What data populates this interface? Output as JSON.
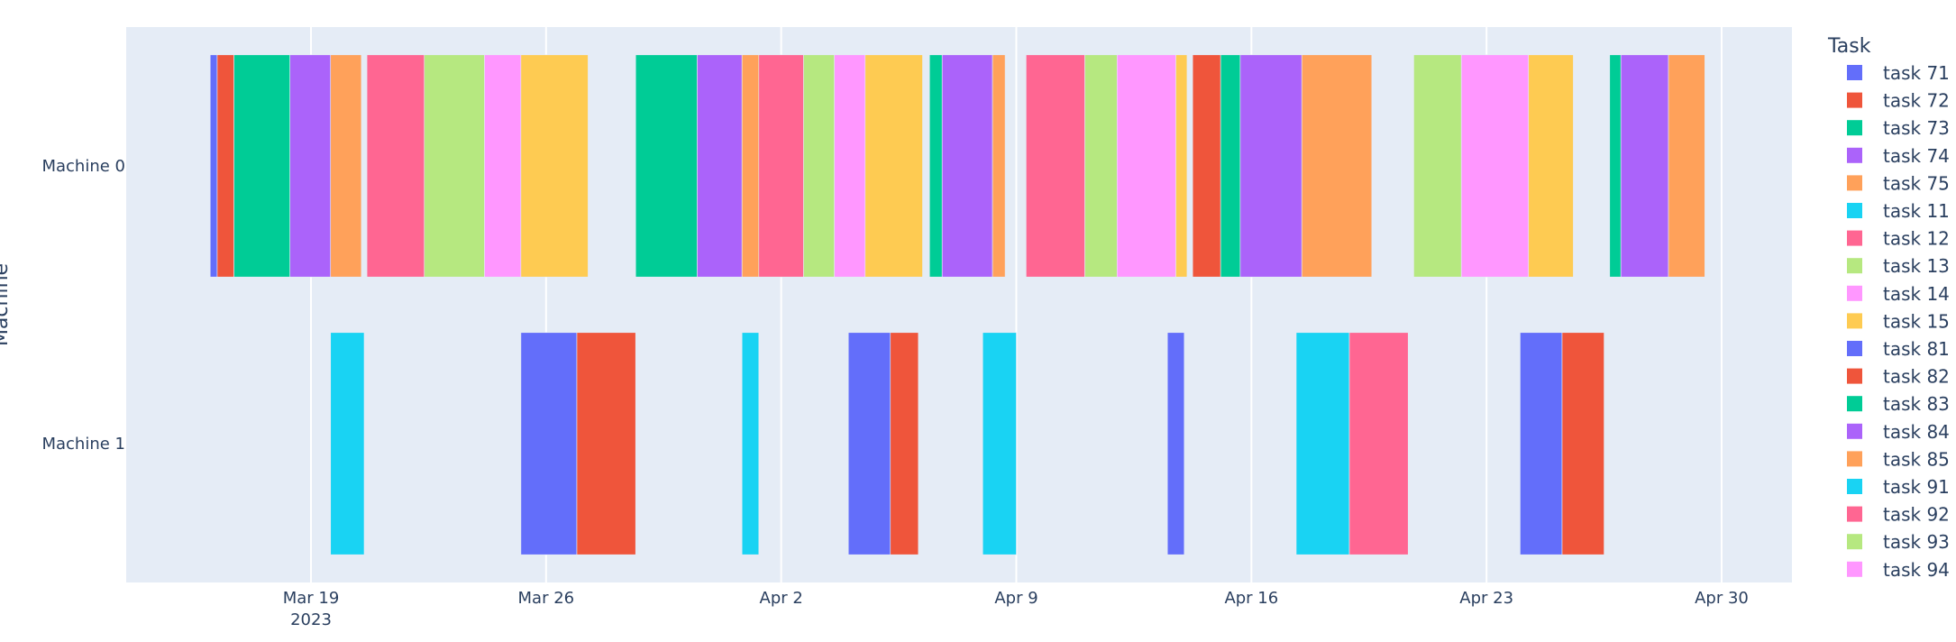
{
  "chart_data": {
    "type": "timeline",
    "y_axis": {
      "title": "Machine",
      "categories": [
        "Machine 0",
        "Machine 1"
      ]
    },
    "x_axis": {
      "type": "date",
      "range": [
        "2023-03-12",
        "2023-05-01"
      ],
      "ticks": [
        {
          "date": "2023-03-19",
          "label": "Mar 19",
          "sublabel": "2023"
        },
        {
          "date": "2023-03-26",
          "label": "Mar 26",
          "sublabel": ""
        },
        {
          "date": "2023-04-02",
          "label": "Apr 2",
          "sublabel": ""
        },
        {
          "date": "2023-04-09",
          "label": "Apr 9",
          "sublabel": ""
        },
        {
          "date": "2023-04-16",
          "label": "Apr 16",
          "sublabel": ""
        },
        {
          "date": "2023-04-23",
          "label": "Apr 23",
          "sublabel": ""
        },
        {
          "date": "2023-04-30",
          "label": "Apr 30",
          "sublabel": ""
        }
      ]
    },
    "legend": {
      "title": "Task",
      "position": "right",
      "items": [
        {
          "name": "task 71",
          "color": "#636efa"
        },
        {
          "name": "task 72",
          "color": "#ef553b"
        },
        {
          "name": "task 73",
          "color": "#00cc96"
        },
        {
          "name": "task 74",
          "color": "#ab63fa"
        },
        {
          "name": "task 75",
          "color": "#ffa15a"
        },
        {
          "name": "task 11",
          "color": "#19d3f3"
        },
        {
          "name": "task 12",
          "color": "#ff6692"
        },
        {
          "name": "task 13",
          "color": "#b6e880"
        },
        {
          "name": "task 14",
          "color": "#ff97ff"
        },
        {
          "name": "task 15",
          "color": "#fecb52"
        },
        {
          "name": "task 81",
          "color": "#636efa"
        },
        {
          "name": "task 82",
          "color": "#ef553b"
        },
        {
          "name": "task 83",
          "color": "#00cc96"
        },
        {
          "name": "task 84",
          "color": "#ab63fa"
        },
        {
          "name": "task 85",
          "color": "#ffa15a"
        },
        {
          "name": "task 91",
          "color": "#19d3f3"
        },
        {
          "name": "task 92",
          "color": "#ff6692"
        },
        {
          "name": "task 93",
          "color": "#b6e880"
        },
        {
          "name": "task 94",
          "color": "#ff97ff"
        }
      ]
    },
    "tasks": [
      {
        "machine": "Machine 0",
        "color": "#636efa",
        "start": "2023-03-16 00:00",
        "end": "2023-03-16 05:00"
      },
      {
        "machine": "Machine 0",
        "color": "#ef553b",
        "start": "2023-03-16 05:00",
        "end": "2023-03-16 17:00"
      },
      {
        "machine": "Machine 0",
        "color": "#00cc96",
        "start": "2023-03-16 17:00",
        "end": "2023-03-18 09:00"
      },
      {
        "machine": "Machine 0",
        "color": "#ab63fa",
        "start": "2023-03-18 09:00",
        "end": "2023-03-19 14:00"
      },
      {
        "machine": "Machine 0",
        "color": "#ffa15a",
        "start": "2023-03-19 14:00",
        "end": "2023-03-20 12:00"
      },
      {
        "machine": "Machine 0",
        "color": "#ff6692",
        "start": "2023-03-20 16:00",
        "end": "2023-03-22 09:00"
      },
      {
        "machine": "Machine 0",
        "color": "#b6e880",
        "start": "2023-03-22 09:00",
        "end": "2023-03-24 04:00"
      },
      {
        "machine": "Machine 0",
        "color": "#ff97ff",
        "start": "2023-03-24 04:00",
        "end": "2023-03-25 06:00"
      },
      {
        "machine": "Machine 0",
        "color": "#fecb52",
        "start": "2023-03-25 06:00",
        "end": "2023-03-27 06:00"
      },
      {
        "machine": "Machine 0",
        "color": "#00cc96",
        "start": "2023-03-28 16:00",
        "end": "2023-03-30 12:00"
      },
      {
        "machine": "Machine 0",
        "color": "#ab63fa",
        "start": "2023-03-30 12:00",
        "end": "2023-03-31 20:00"
      },
      {
        "machine": "Machine 0",
        "color": "#ffa15a",
        "start": "2023-03-31 20:00",
        "end": "2023-04-01 08:00"
      },
      {
        "machine": "Machine 0",
        "color": "#ff6692",
        "start": "2023-04-01 08:00",
        "end": "2023-04-02 16:00"
      },
      {
        "machine": "Machine 0",
        "color": "#b6e880",
        "start": "2023-04-02 16:00",
        "end": "2023-04-03 14:00"
      },
      {
        "machine": "Machine 0",
        "color": "#ff97ff",
        "start": "2023-04-03 14:00",
        "end": "2023-04-04 12:00"
      },
      {
        "machine": "Machine 0",
        "color": "#fecb52",
        "start": "2023-04-04 12:00",
        "end": "2023-04-06 05:00"
      },
      {
        "machine": "Machine 0",
        "color": "#00cc96",
        "start": "2023-04-06 10:00",
        "end": "2023-04-06 19:00"
      },
      {
        "machine": "Machine 0",
        "color": "#ab63fa",
        "start": "2023-04-06 19:00",
        "end": "2023-04-08 07:00"
      },
      {
        "machine": "Machine 0",
        "color": "#ffa15a",
        "start": "2023-04-08 07:00",
        "end": "2023-04-08 16:00"
      },
      {
        "machine": "Machine 0",
        "color": "#ff6692",
        "start": "2023-04-09 07:00",
        "end": "2023-04-11 01:00"
      },
      {
        "machine": "Machine 0",
        "color": "#b6e880",
        "start": "2023-04-11 01:00",
        "end": "2023-04-12 00:00"
      },
      {
        "machine": "Machine 0",
        "color": "#ff97ff",
        "start": "2023-04-12 00:00",
        "end": "2023-04-13 18:00"
      },
      {
        "machine": "Machine 0",
        "color": "#fecb52",
        "start": "2023-04-13 18:00",
        "end": "2023-04-14 02:00"
      },
      {
        "machine": "Machine 0",
        "color": "#ef553b",
        "start": "2023-04-14 06:00",
        "end": "2023-04-15 02:00"
      },
      {
        "machine": "Machine 0",
        "color": "#00cc96",
        "start": "2023-04-15 02:00",
        "end": "2023-04-15 16:00"
      },
      {
        "machine": "Machine 0",
        "color": "#ab63fa",
        "start": "2023-04-15 16:00",
        "end": "2023-04-17 12:00"
      },
      {
        "machine": "Machine 0",
        "color": "#ffa15a",
        "start": "2023-04-17 12:00",
        "end": "2023-04-19 14:00"
      },
      {
        "machine": "Machine 0",
        "color": "#b6e880",
        "start": "2023-04-20 20:00",
        "end": "2023-04-22 06:00"
      },
      {
        "machine": "Machine 0",
        "color": "#ff97ff",
        "start": "2023-04-22 06:00",
        "end": "2023-04-24 06:00"
      },
      {
        "machine": "Machine 0",
        "color": "#fecb52",
        "start": "2023-04-24 06:00",
        "end": "2023-04-25 14:00"
      },
      {
        "machine": "Machine 0",
        "color": "#00cc96",
        "start": "2023-04-26 16:00",
        "end": "2023-04-27 00:00"
      },
      {
        "machine": "Machine 0",
        "color": "#ab63fa",
        "start": "2023-04-27 00:00",
        "end": "2023-04-28 10:00"
      },
      {
        "machine": "Machine 0",
        "color": "#ffa15a",
        "start": "2023-04-28 10:00",
        "end": "2023-04-29 12:00"
      },
      {
        "machine": "Machine 1",
        "color": "#19d3f3",
        "start": "2023-03-19 14:00",
        "end": "2023-03-20 14:00"
      },
      {
        "machine": "Machine 1",
        "color": "#636efa",
        "start": "2023-03-25 06:00",
        "end": "2023-03-26 22:00"
      },
      {
        "machine": "Machine 1",
        "color": "#ef553b",
        "start": "2023-03-26 22:00",
        "end": "2023-03-28 16:00"
      },
      {
        "machine": "Machine 1",
        "color": "#19d3f3",
        "start": "2023-03-31 20:00",
        "end": "2023-04-01 08:00"
      },
      {
        "machine": "Machine 1",
        "color": "#636efa",
        "start": "2023-04-04 00:00",
        "end": "2023-04-05 06:00"
      },
      {
        "machine": "Machine 1",
        "color": "#ef553b",
        "start": "2023-04-05 06:00",
        "end": "2023-04-06 02:00"
      },
      {
        "machine": "Machine 1",
        "color": "#19d3f3",
        "start": "2023-04-08 00:00",
        "end": "2023-04-09 00:00"
      },
      {
        "machine": "Machine 1",
        "color": "#636efa",
        "start": "2023-04-13 12:00",
        "end": "2023-04-14 00:00"
      },
      {
        "machine": "Machine 1",
        "color": "#19d3f3",
        "start": "2023-04-17 08:00",
        "end": "2023-04-18 22:00"
      },
      {
        "machine": "Machine 1",
        "color": "#ff6692",
        "start": "2023-04-18 22:00",
        "end": "2023-04-20 16:00"
      },
      {
        "machine": "Machine 1",
        "color": "#636efa",
        "start": "2023-04-24 00:00",
        "end": "2023-04-25 06:00"
      },
      {
        "machine": "Machine 1",
        "color": "#ef553b",
        "start": "2023-04-25 06:00",
        "end": "2023-04-26 12:00"
      }
    ]
  }
}
